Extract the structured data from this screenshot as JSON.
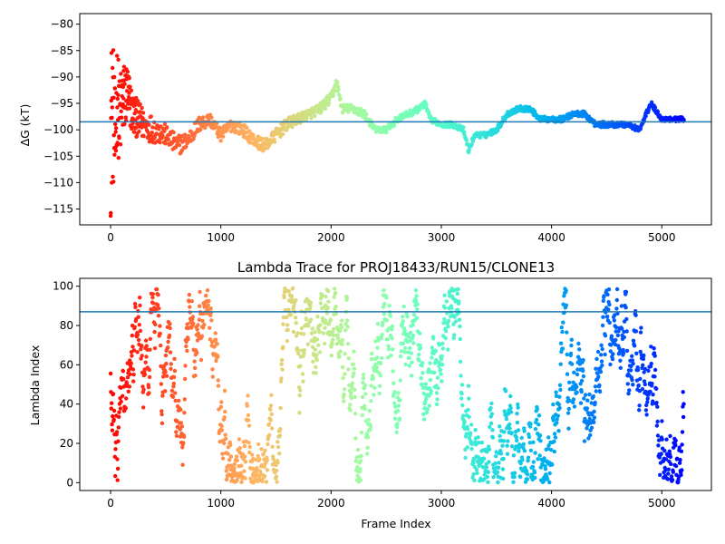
{
  "chart_data": [
    {
      "type": "scatter",
      "title": "",
      "xlabel": "",
      "ylabel": "ΔG (kT)",
      "xlim": [
        -280,
        5450
      ],
      "ylim": [
        -118,
        -78
      ],
      "xticks": [
        0,
        1000,
        2000,
        3000,
        4000,
        5000
      ],
      "xtick_labels": [
        "0",
        "1000",
        "2000",
        "3000",
        "4000",
        "5000"
      ],
      "yticks": [
        -80,
        -85,
        -90,
        -95,
        -100,
        -105,
        -110,
        -115
      ],
      "ytick_labels": [
        "−80",
        "−85",
        "−90",
        "−95",
        "−100",
        "−105",
        "−110",
        "−115"
      ],
      "hline": -98.5,
      "hline_color": "#1f77b4",
      "colormap": "rainbow (red at frame 0 → violet at last frame)",
      "series": [
        {
          "x": [
            0,
            20,
            40,
            60,
            80,
            100,
            150,
            200,
            300,
            400,
            500,
            600,
            700,
            800,
            900,
            1000,
            1100,
            1200,
            1300,
            1400,
            1500,
            1600,
            1700,
            1800,
            1900,
            2000,
            2050,
            2100,
            2200,
            2300,
            2400,
            2500,
            2600,
            2700,
            2800,
            2850,
            2900,
            3000,
            3100,
            3200,
            3250,
            3300,
            3400,
            3500,
            3600,
            3700,
            3800,
            3900,
            4000,
            4100,
            4200,
            4300,
            4400,
            4500,
            4600,
            4700,
            4800,
            4900,
            5000,
            5100,
            5200
          ],
          "y": [
            -100,
            -96,
            -104,
            -92,
            -99,
            -95,
            -93,
            -97,
            -99,
            -100,
            -101,
            -103,
            -102,
            -99,
            -98,
            -101,
            -99,
            -100,
            -102,
            -103,
            -101,
            -99,
            -98,
            -97,
            -96,
            -94,
            -91,
            -96,
            -96,
            -97,
            -100,
            -100,
            -98,
            -97,
            -96,
            -95,
            -98,
            -99,
            -99,
            -100,
            -104,
            -101,
            -101,
            -100,
            -97,
            -96,
            -96,
            -98,
            -98,
            -98,
            -97,
            -97,
            -99,
            -99,
            -99,
            -99,
            -100,
            -95,
            -98,
            -98,
            -98
          ],
          "spread": [
            17,
            14,
            12,
            10,
            9,
            8,
            6,
            4,
            3,
            2.5,
            2,
            2,
            1.5,
            1.5,
            1.2,
            1.2,
            1.2,
            1.2,
            1.2,
            1.2,
            1.2,
            1.2,
            1,
            1,
            1,
            1,
            0.8,
            0.8,
            0.8,
            0.8,
            0.6,
            0.6,
            0.6,
            0.6,
            0.6,
            0.6,
            0.5,
            0.5,
            0.5,
            0.5,
            0.5,
            0.5,
            0.5,
            0.5,
            0.5,
            0.5,
            0.5,
            0.5,
            0.5,
            0.5,
            0.5,
            0.5,
            0.5,
            0.5,
            0.5,
            0.5,
            0.5,
            0.5,
            0.4,
            0.4,
            0.4
          ]
        }
      ]
    },
    {
      "type": "scatter",
      "title": "Lambda Trace for PROJ18433/RUN15/CLONE13",
      "xlabel": "Frame Index",
      "ylabel": "Lambda Index",
      "xlim": [
        -280,
        5450
      ],
      "ylim": [
        -4,
        104
      ],
      "xticks": [
        0,
        1000,
        2000,
        3000,
        4000,
        5000
      ],
      "xtick_labels": [
        "0",
        "1000",
        "2000",
        "3000",
        "4000",
        "5000"
      ],
      "yticks": [
        0,
        20,
        40,
        60,
        80,
        100
      ],
      "ytick_labels": [
        "0",
        "20",
        "40",
        "60",
        "80",
        "100"
      ],
      "hline": 87,
      "hline_color": "#1f77b4",
      "colormap": "rainbow (red at frame 0 → violet at last frame)",
      "n_frames": 5200,
      "range": [
        0,
        99
      ],
      "distribution": "each frame a lambda index between 0 and 99, random walk"
    }
  ]
}
